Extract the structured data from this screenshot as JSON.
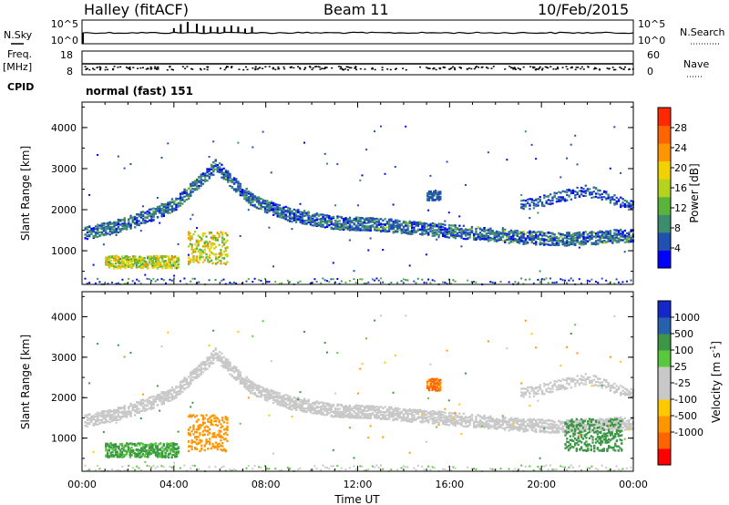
{
  "header": {
    "station": "Halley (fitACF)",
    "beam": "Beam 11",
    "date": "10/Feb/2015"
  },
  "status_panel": {
    "nsky_label": "N.Sky",
    "nsky_ticks": [
      "10^5",
      "10^0"
    ],
    "nsearch_label": "N.Search",
    "nsearch_ticks": [
      "10^5",
      "10^0"
    ],
    "freq_label": "Freq.",
    "freq_unit": "[MHz]",
    "freq_ticks": [
      "18",
      "8"
    ],
    "nave_label": "Nave",
    "nave_ticks": [
      "60",
      "0"
    ],
    "cpid_label": "CPID",
    "cpid_value": "normal (fast) 151"
  },
  "colors": {
    "frame": "#000000",
    "power_scale": [
      "#0000ff",
      "#2050b0",
      "#3c8c6e",
      "#5ab43c",
      "#b4d21e",
      "#f0d200",
      "#ff9600",
      "#ff6400",
      "#ff2800"
    ],
    "velocity_scale": [
      "#ff0000",
      "#ff6400",
      "#ff9600",
      "#ffc800",
      "#c8c8c8",
      "#c8c8c8",
      "#5ac83c",
      "#3c9646",
      "#2860b0",
      "#1428c8"
    ]
  },
  "chart_data": [
    {
      "type": "heatmap",
      "name": "power",
      "ylabel": "Slant Range [km]",
      "colorbar_label": "Power [dB]",
      "colorbar_ticks": [
        "28",
        "24",
        "20",
        "16",
        "12",
        "8",
        "4"
      ],
      "colorbar_range": [
        0,
        32
      ],
      "x_ticks": [
        "00:00",
        "04:00",
        "08:00",
        "12:00",
        "16:00",
        "20:00",
        "00:00"
      ],
      "x_range_hours": [
        0,
        24
      ],
      "y_ticks": [
        "4000",
        "3000",
        "2000",
        "1000"
      ],
      "y_range_km": [
        180,
        4620
      ],
      "main_echo_band_range_km": [
        [
          0,
          1450
        ],
        [
          1,
          1550
        ],
        [
          2,
          1700
        ],
        [
          3,
          1900
        ],
        [
          4,
          2150
        ],
        [
          5,
          2650
        ],
        [
          5.8,
          3100
        ],
        [
          6.5,
          2700
        ],
        [
          7.5,
          2200
        ],
        [
          9,
          1900
        ],
        [
          11,
          1700
        ],
        [
          13,
          1650
        ],
        [
          15,
          1550
        ],
        [
          17,
          1450
        ],
        [
          19,
          1350
        ],
        [
          21,
          1300
        ],
        [
          22.5,
          1350
        ],
        [
          24,
          1400
        ]
      ],
      "upper_echo_band_range_km": [
        [
          19,
          2100
        ],
        [
          20.5,
          2300
        ],
        [
          22,
          2500
        ],
        [
          23,
          2300
        ],
        [
          24,
          2100
        ]
      ],
      "near_range_patches": [
        {
          "hours": [
            1.0,
            4.2
          ],
          "range_km": [
            600,
            900
          ],
          "power_db": 22
        },
        {
          "hours": [
            4.6,
            6.3
          ],
          "range_km": [
            700,
            1500
          ],
          "power_db": 24
        },
        {
          "hours": [
            15.0,
            15.6
          ],
          "range_km": [
            2250,
            2500
          ],
          "power_db": 8
        }
      ]
    },
    {
      "type": "heatmap",
      "name": "velocity",
      "ylabel": "Slant Range [km]",
      "colorbar_label": "Velocity [m s^-1]",
      "colorbar_ticks": [
        "1000",
        "500",
        "100",
        "25",
        "-25",
        "-100",
        "-500",
        "-1000"
      ],
      "x_ticks": [
        "00:00",
        "04:00",
        "08:00",
        "12:00",
        "16:00",
        "20:00",
        "00:00"
      ],
      "x_range_hours": [
        0,
        24
      ],
      "xlabel": "Time UT",
      "y_ticks": [
        "4000",
        "3000",
        "2000",
        "1000"
      ],
      "y_range_km": [
        180,
        4620
      ],
      "patches": [
        {
          "hours": [
            1.0,
            4.2
          ],
          "range_km": [
            550,
            900
          ],
          "velocity": 120
        },
        {
          "hours": [
            4.6,
            6.3
          ],
          "range_km": [
            700,
            1600
          ],
          "velocity": -300
        },
        {
          "hours": [
            15.0,
            15.6
          ],
          "range_km": [
            2200,
            2500
          ],
          "velocity": -600
        },
        {
          "hours": [
            21.0,
            23.5
          ],
          "range_km": [
            700,
            1500
          ],
          "velocity": 300
        }
      ]
    }
  ]
}
